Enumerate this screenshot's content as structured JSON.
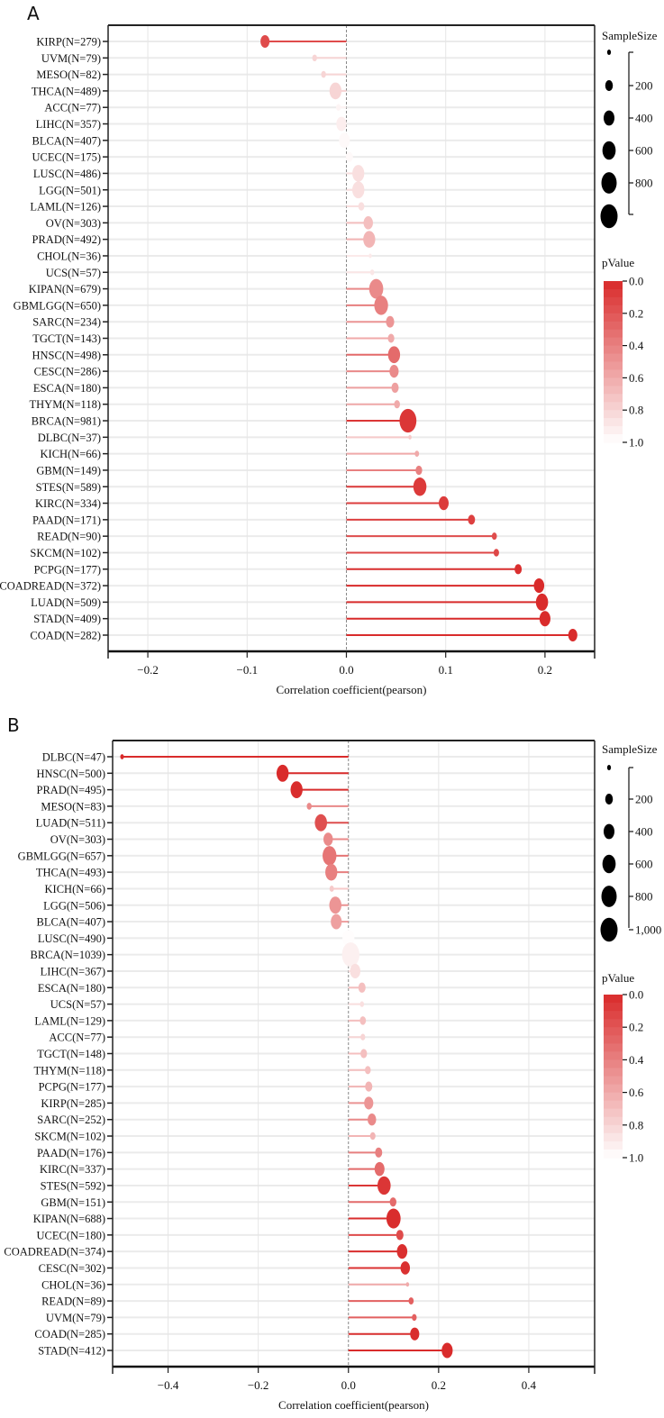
{
  "chart_data": [
    {
      "panel": "A",
      "type": "bar",
      "orientation": "horizontal-lollipop",
      "categories": [
        "KIRP(N=279)",
        "UVM(N=79)",
        "MESO(N=82)",
        "THCA(N=489)",
        "ACC(N=77)",
        "LIHC(N=357)",
        "BLCA(N=407)",
        "UCEC(N=175)",
        "LUSC(N=486)",
        "LGG(N=501)",
        "LAML(N=126)",
        "OV(N=303)",
        "PRAD(N=492)",
        "CHOL(N=36)",
        "UCS(N=57)",
        "KIPAN(N=679)",
        "GBMLGG(N=650)",
        "SARC(N=234)",
        "TGCT(N=143)",
        "HNSC(N=498)",
        "CESC(N=286)",
        "ESCA(N=180)",
        "THYM(N=118)",
        "BRCA(N=981)",
        "DLBC(N=37)",
        "KICH(N=66)",
        "GBM(N=149)",
        "STES(N=589)",
        "KIRC(N=334)",
        "PAAD(N=171)",
        "READ(N=90)",
        "SKCM(N=102)",
        "PCPG(N=177)",
        "COADREAD(N=372)",
        "LUAD(N=509)",
        "STAD(N=409)",
        "COAD(N=282)"
      ],
      "sample_sizes": [
        279,
        79,
        82,
        489,
        77,
        357,
        407,
        175,
        486,
        501,
        126,
        303,
        492,
        36,
        57,
        679,
        650,
        234,
        143,
        498,
        286,
        180,
        118,
        981,
        37,
        66,
        149,
        589,
        334,
        171,
        90,
        102,
        177,
        372,
        509,
        409,
        282
      ],
      "values": [
        -0.082,
        -0.032,
        -0.023,
        -0.011,
        -0.008,
        -0.005,
        -0.002,
        0.003,
        0.012,
        0.012,
        0.015,
        0.022,
        0.023,
        0.024,
        0.026,
        0.03,
        0.035,
        0.044,
        0.045,
        0.048,
        0.048,
        0.049,
        0.051,
        0.062,
        0.064,
        0.071,
        0.073,
        0.074,
        0.098,
        0.126,
        0.149,
        0.151,
        0.173,
        0.194,
        0.197,
        0.2,
        0.228
      ],
      "p_values": [
        0.15,
        0.8,
        0.8,
        0.8,
        0.95,
        0.92,
        0.97,
        0.97,
        0.85,
        0.85,
        0.85,
        0.7,
        0.65,
        0.9,
        0.88,
        0.45,
        0.4,
        0.5,
        0.6,
        0.3,
        0.45,
        0.55,
        0.6,
        0.05,
        0.75,
        0.6,
        0.4,
        0.07,
        0.08,
        0.1,
        0.16,
        0.13,
        0.02,
        0.0002,
        1e-05,
        4e-05,
        0.0001
      ],
      "xlabel": "Correlation coefficient(pearson)",
      "xticks": [
        -0.2,
        -0.1,
        0.0,
        0.1,
        0.2
      ],
      "xtick_labels": [
        "−0.2",
        "−0.1",
        "0.0",
        "0.1",
        "0.2"
      ],
      "xlim": [
        -0.24,
        0.25
      ],
      "grid": true,
      "size_legend": {
        "title": "SampleSize",
        "ticks": [
          "200",
          "400",
          "600",
          "800"
        ],
        "sizes": [
          200,
          400,
          600,
          800
        ]
      },
      "color_legend": {
        "title": "pValue",
        "ticks": [
          "0.0",
          "0.2",
          "0.4",
          "0.6",
          "0.8",
          "1.0"
        ]
      },
      "legend_position": "right"
    },
    {
      "panel": "B",
      "type": "bar",
      "orientation": "horizontal-lollipop",
      "categories": [
        "DLBC(N=47)",
        "HNSC(N=500)",
        "PRAD(N=495)",
        "MESO(N=83)",
        "LUAD(N=511)",
        "OV(N=303)",
        "GBMLGG(N=657)",
        "THCA(N=493)",
        "KICH(N=66)",
        "LGG(N=506)",
        "BLCA(N=407)",
        "LUSC(N=490)",
        "BRCA(N=1039)",
        "LIHC(N=367)",
        "ESCA(N=180)",
        "UCS(N=57)",
        "LAML(N=129)",
        "ACC(N=77)",
        "TGCT(N=148)",
        "THYM(N=118)",
        "PCPG(N=177)",
        "KIRP(N=285)",
        "SARC(N=252)",
        "SKCM(N=102)",
        "PAAD(N=176)",
        "KIRC(N=337)",
        "STES(N=592)",
        "GBM(N=151)",
        "KIPAN(N=688)",
        "UCEC(N=180)",
        "COADREAD(N=374)",
        "CESC(N=302)",
        "CHOL(N=36)",
        "READ(N=89)",
        "UVM(N=79)",
        "COAD(N=285)",
        "STAD(N=412)"
      ],
      "sample_sizes": [
        47,
        500,
        495,
        83,
        511,
        303,
        657,
        493,
        66,
        506,
        407,
        490,
        1039,
        367,
        180,
        57,
        129,
        77,
        148,
        118,
        177,
        285,
        252,
        102,
        176,
        337,
        592,
        151,
        688,
        180,
        374,
        302,
        36,
        89,
        79,
        285,
        412
      ],
      "values": [
        -0.502,
        -0.146,
        -0.115,
        -0.087,
        -0.061,
        -0.045,
        -0.042,
        -0.038,
        -0.037,
        -0.029,
        -0.027,
        0.0,
        0.005,
        0.015,
        0.03,
        0.03,
        0.032,
        0.032,
        0.034,
        0.043,
        0.045,
        0.045,
        0.052,
        0.054,
        0.067,
        0.069,
        0.079,
        0.099,
        0.1,
        0.114,
        0.119,
        0.126,
        0.131,
        0.139,
        0.146,
        0.147,
        0.219
      ],
      "p_values": [
        0.0003,
        0.001,
        0.01,
        0.45,
        0.17,
        0.45,
        0.35,
        0.4,
        0.75,
        0.5,
        0.55,
        0.99,
        0.93,
        0.85,
        0.7,
        0.85,
        0.7,
        0.8,
        0.7,
        0.7,
        0.65,
        0.5,
        0.45,
        0.65,
        0.4,
        0.3,
        0.05,
        0.3,
        0.008,
        0.15,
        0.02,
        0.03,
        0.6,
        0.25,
        0.25,
        0.013,
        1e-05
      ],
      "xlabel": "Correlation coefficient(pearson)",
      "xticks": [
        -0.4,
        -0.2,
        0.0,
        0.2,
        0.4
      ],
      "xtick_labels": [
        "−0.4",
        "−0.2",
        "0.0",
        "0.2",
        "0.4"
      ],
      "xlim": [
        -0.523,
        0.546
      ],
      "grid": true,
      "size_legend": {
        "title": "SampleSize",
        "ticks": [
          "200",
          "400",
          "600",
          "800",
          "1,000"
        ],
        "sizes": [
          200,
          400,
          600,
          800,
          1000
        ]
      },
      "color_legend": {
        "title": "pValue",
        "ticks": [
          "0.0",
          "0.2",
          "0.4",
          "0.6",
          "0.8",
          "1.0"
        ]
      },
      "legend_position": "right"
    }
  ],
  "colors": {
    "significant": "#d92b2b",
    "nonsignificant": "#ffffff",
    "grid": "#e6e6e6",
    "zero_line": "#888888"
  }
}
